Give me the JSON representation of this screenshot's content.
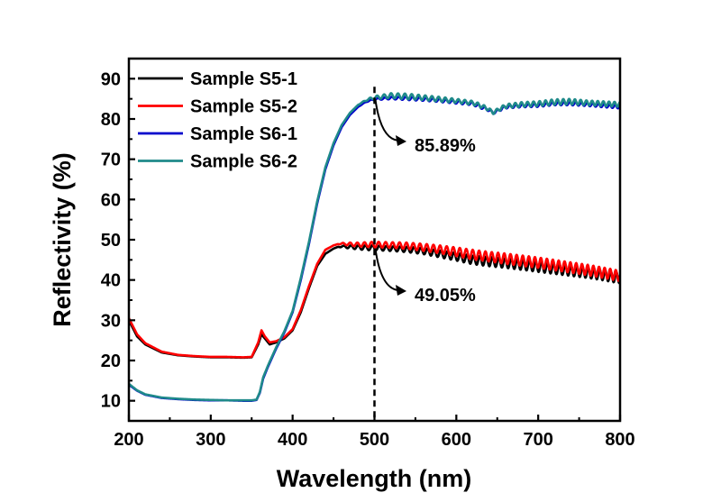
{
  "chart_data": {
    "type": "line",
    "title": "",
    "xlabel": "Wavelength (nm)",
    "ylabel": "Reflectivity (%)",
    "xlim": [
      200,
      800
    ],
    "ylim": [
      5,
      95
    ],
    "xticks": [
      200,
      300,
      400,
      500,
      600,
      700,
      800
    ],
    "yticks": [
      10,
      20,
      30,
      40,
      50,
      60,
      70,
      80,
      90
    ],
    "xtick_labels": [
      "200",
      "300",
      "400",
      "500",
      "600",
      "700",
      "800"
    ],
    "ytick_labels": [
      "10",
      "20",
      "30",
      "40",
      "50",
      "60",
      "70",
      "80",
      "90"
    ],
    "grid": false,
    "legend_position": "top-left",
    "series": [
      {
        "name": "Sample S5-1",
        "color": "#000000",
        "x": [
          200,
          210,
          220,
          240,
          260,
          280,
          300,
          320,
          340,
          350,
          358,
          362,
          366,
          372,
          380,
          390,
          400,
          410,
          420,
          430,
          440,
          450,
          455,
          460,
          470,
          480,
          490,
          500,
          520,
          540,
          560,
          580,
          600,
          620,
          640,
          660,
          680,
          700,
          720,
          740,
          760,
          780,
          790,
          800
        ],
        "y": [
          30,
          26,
          24,
          22,
          21.3,
          21,
          20.8,
          20.8,
          20.7,
          20.8,
          24,
          26.5,
          25.5,
          24,
          24.5,
          25.5,
          27.5,
          32,
          38,
          43.5,
          46.5,
          47.8,
          48.2,
          48.3,
          48.2,
          48.1,
          48,
          48,
          47.8,
          47.6,
          47.2,
          46.5,
          45.8,
          45,
          44.6,
          44.2,
          43.8,
          43.3,
          42.8,
          42.3,
          41.8,
          41.2,
          40.8,
          40.5
        ],
        "ripple": [
          0,
          0,
          0,
          0,
          0,
          0,
          0,
          0,
          0,
          0,
          0,
          0,
          0,
          0,
          0,
          0,
          0,
          0,
          0,
          0,
          0,
          0,
          0,
          0.2,
          0.4,
          0.5,
          0.6,
          0.6,
          0.6,
          0.7,
          0.8,
          0.9,
          1.0,
          1.1,
          1.2,
          1.2,
          1.3,
          1.3,
          1.3,
          1.3,
          1.3,
          1.3,
          1.3,
          1.3
        ]
      },
      {
        "name": "Sample S5-2",
        "color": "#ff0000",
        "x": [
          200,
          210,
          220,
          240,
          260,
          280,
          300,
          320,
          340,
          350,
          358,
          362,
          366,
          372,
          380,
          390,
          400,
          410,
          420,
          430,
          440,
          450,
          455,
          460,
          470,
          480,
          490,
          500,
          520,
          540,
          560,
          580,
          600,
          620,
          640,
          660,
          680,
          700,
          720,
          740,
          760,
          780,
          790,
          800
        ],
        "y": [
          30.5,
          26.5,
          24.3,
          22.2,
          21.4,
          21.1,
          20.9,
          20.9,
          20.8,
          20.9,
          24.5,
          27.5,
          26,
          24.5,
          24.8,
          25.8,
          27.8,
          32.5,
          38.5,
          44,
          47.5,
          48.6,
          48.9,
          49,
          48.9,
          48.8,
          48.8,
          48.8,
          48.7,
          48.5,
          48.1,
          47.6,
          47,
          46.3,
          45.8,
          45.3,
          44.8,
          44.3,
          43.7,
          43.1,
          42.5,
          41.8,
          41.4,
          41
        ],
        "ripple": [
          0,
          0,
          0,
          0,
          0,
          0,
          0,
          0,
          0,
          0,
          0,
          0,
          0,
          0,
          0,
          0,
          0,
          0,
          0,
          0,
          0,
          0,
          0,
          0.2,
          0.4,
          0.5,
          0.6,
          0.7,
          0.7,
          0.8,
          0.9,
          1.0,
          1.1,
          1.2,
          1.2,
          1.3,
          1.3,
          1.3,
          1.3,
          1.3,
          1.3,
          1.3,
          1.3,
          1.3
        ]
      },
      {
        "name": "Sample S6-1",
        "color": "#0000cc",
        "x": [
          200,
          210,
          220,
          240,
          260,
          280,
          300,
          320,
          340,
          350,
          356,
          360,
          364,
          370,
          380,
          390,
          400,
          410,
          420,
          430,
          440,
          450,
          460,
          470,
          480,
          490,
          500,
          520,
          540,
          560,
          580,
          600,
          620,
          630,
          640,
          645,
          650,
          660,
          680,
          700,
          720,
          740,
          760,
          780,
          800
        ],
        "y": [
          14,
          12.5,
          11.5,
          10.7,
          10.4,
          10.2,
          10.1,
          10.1,
          10,
          10,
          10.2,
          12,
          15.5,
          18.5,
          23,
          27,
          32,
          40,
          49,
          59,
          67.5,
          73.5,
          78,
          81,
          83,
          84.3,
          84.9,
          85.2,
          85.1,
          84.9,
          84.6,
          84.2,
          83.8,
          83,
          82.2,
          81.5,
          82,
          83,
          83.3,
          83.4,
          83.8,
          83.8,
          83.6,
          83.3,
          83
        ],
        "ripple": [
          0,
          0,
          0,
          0,
          0,
          0,
          0,
          0,
          0,
          0,
          0,
          0,
          0,
          0,
          0,
          0,
          0,
          0,
          0,
          0,
          0,
          0,
          0,
          0,
          0,
          0.1,
          0.2,
          0.3,
          0.4,
          0.4,
          0.4,
          0.4,
          0.4,
          0.4,
          0.3,
          0.3,
          0.3,
          0.4,
          0.4,
          0.4,
          0.4,
          0.4,
          0.4,
          0.4,
          0.4
        ]
      },
      {
        "name": "Sample S6-2",
        "color": "#1f8a8a",
        "x": [
          200,
          210,
          220,
          240,
          260,
          280,
          300,
          320,
          340,
          350,
          356,
          360,
          364,
          370,
          380,
          390,
          400,
          410,
          420,
          430,
          440,
          450,
          460,
          470,
          480,
          490,
          500,
          520,
          540,
          560,
          580,
          600,
          620,
          630,
          640,
          645,
          650,
          660,
          680,
          700,
          720,
          740,
          760,
          780,
          800
        ],
        "y": [
          14.2,
          12.6,
          11.6,
          10.8,
          10.5,
          10.3,
          10.2,
          10.1,
          10.1,
          10.1,
          10.3,
          12.2,
          15.8,
          18.8,
          23.3,
          27.3,
          32.3,
          40.5,
          49.5,
          59.5,
          68,
          74,
          78.5,
          81.5,
          83.5,
          84.7,
          85.3,
          85.8,
          85.6,
          85.3,
          84.9,
          84.5,
          84,
          83.3,
          82.4,
          81.5,
          82.2,
          83.2,
          83.6,
          83.8,
          84.2,
          84.3,
          84,
          83.8,
          83.6
        ],
        "ripple": [
          0,
          0,
          0,
          0,
          0,
          0,
          0,
          0,
          0,
          0,
          0,
          0,
          0,
          0,
          0,
          0,
          0,
          0,
          0,
          0,
          0,
          0,
          0,
          0,
          0,
          0.2,
          0.4,
          0.6,
          0.7,
          0.6,
          0.6,
          0.5,
          0.5,
          0.5,
          0.4,
          0.3,
          0.4,
          0.5,
          0.6,
          0.6,
          0.7,
          0.7,
          0.6,
          0.6,
          0.6
        ]
      }
    ],
    "reference_line": {
      "x": 500,
      "style": "dashed",
      "color": "#000000"
    },
    "annotations": [
      {
        "label": "85.89%",
        "at_x": 500,
        "at_y": 85.5
      },
      {
        "label": "49.05%",
        "at_x": 500,
        "at_y": 48.5
      }
    ]
  }
}
